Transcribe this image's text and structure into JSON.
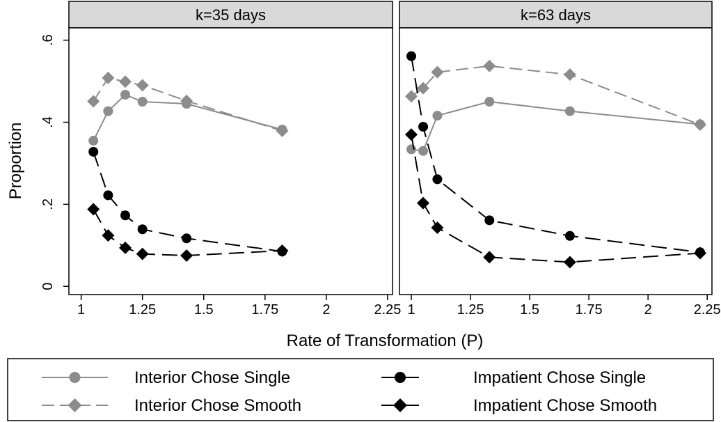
{
  "figure": {
    "ylabel": "Proportion",
    "xlabel": "Rate of Transformation (P)"
  },
  "legend": {
    "placement": "bottom",
    "entries": [
      {
        "label": "Interior Chose Single",
        "color": "#8c8c8c",
        "marker": "circle",
        "dash": "solid"
      },
      {
        "label": "Impatient Chose Single",
        "color": "#000000",
        "marker": "circle",
        "dash": "long-dash"
      },
      {
        "label": "Interior Chose Smooth",
        "color": "#8c8c8c",
        "marker": "diamond",
        "dash": "dash"
      },
      {
        "label": "Impatient Chose Smooth",
        "color": "#000000",
        "marker": "diamond",
        "dash": "long-dash"
      }
    ]
  },
  "chart_data": [
    {
      "type": "line",
      "panel_title": "k=35 days",
      "xlim": [
        0.95,
        2.27
      ],
      "ylim": [
        -0.02,
        0.63
      ],
      "xticks": [
        1,
        1.25,
        1.5,
        1.75,
        2,
        2.25
      ],
      "xtick_labels": [
        "1",
        "1.25",
        "1.5",
        "1.75",
        "2",
        "2.25"
      ],
      "yticks": [
        0,
        0.2,
        0.4,
        0.6
      ],
      "ytick_labels": [
        "0",
        ".2",
        ".4",
        ".6"
      ],
      "x": [
        1.05,
        1.11,
        1.18,
        1.25,
        1.43,
        1.82
      ],
      "series": [
        {
          "name": "Interior Chose Single",
          "values": [
            0.355,
            0.427,
            0.467,
            0.45,
            0.445,
            0.382
          ]
        },
        {
          "name": "Interior Chose Smooth",
          "values": [
            0.451,
            0.508,
            0.499,
            0.49,
            0.452,
            0.379
          ]
        },
        {
          "name": "Impatient Chose Single",
          "values": [
            0.328,
            0.222,
            0.173,
            0.139,
            0.117,
            0.085
          ]
        },
        {
          "name": "Impatient Chose Smooth",
          "values": [
            0.188,
            0.124,
            0.094,
            0.079,
            0.075,
            0.087
          ]
        }
      ]
    },
    {
      "type": "line",
      "panel_title": "k=63 days",
      "xlim": [
        0.95,
        2.27
      ],
      "ylim": [
        -0.02,
        0.63
      ],
      "xticks": [
        1,
        1.25,
        1.5,
        1.75,
        2,
        2.25
      ],
      "xtick_labels": [
        "1",
        "1.25",
        "1.5",
        "1.75",
        "2",
        "2.25"
      ],
      "yticks": [
        0,
        0.2,
        0.4,
        0.6
      ],
      "ytick_labels": [
        "0",
        ".2",
        ".4",
        ".6"
      ],
      "x": [
        1.0,
        1.05,
        1.11,
        1.33,
        1.67,
        2.22
      ],
      "series": [
        {
          "name": "Interior Chose Single",
          "values": [
            0.334,
            0.33,
            0.416,
            0.45,
            0.427,
            0.395
          ]
        },
        {
          "name": "Interior Chose Smooth",
          "values": [
            0.463,
            0.483,
            0.522,
            0.537,
            0.516,
            0.394
          ]
        },
        {
          "name": "Impatient Chose Single",
          "values": [
            0.561,
            0.389,
            0.261,
            0.161,
            0.123,
            0.083
          ]
        },
        {
          "name": "Impatient Chose Smooth",
          "values": [
            0.37,
            0.203,
            0.143,
            0.071,
            0.059,
            0.081
          ]
        }
      ]
    }
  ]
}
